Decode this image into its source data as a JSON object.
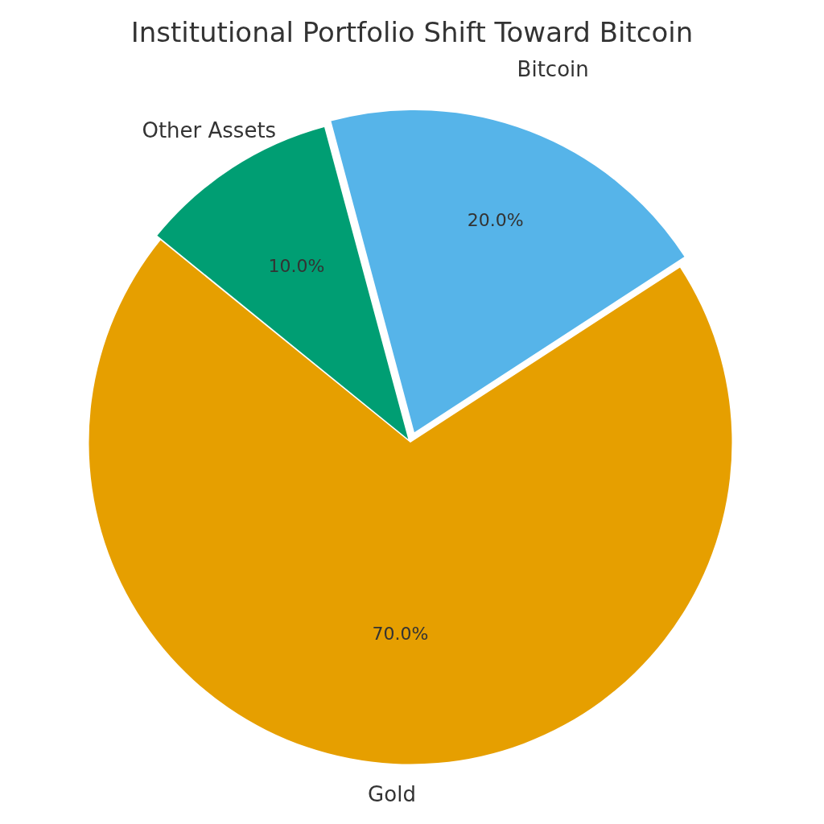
{
  "chart_data": {
    "type": "pie",
    "title": "Institutional Portfolio Shift Toward Bitcoin",
    "categories": [
      "Gold",
      "Other Assets",
      "Bitcoin"
    ],
    "values": [
      70,
      10,
      20
    ],
    "value_labels": [
      "70.0%",
      "10.0%",
      "20.0%"
    ],
    "colors": [
      "#e69f00",
      "#009e73",
      "#56b4e9"
    ]
  }
}
